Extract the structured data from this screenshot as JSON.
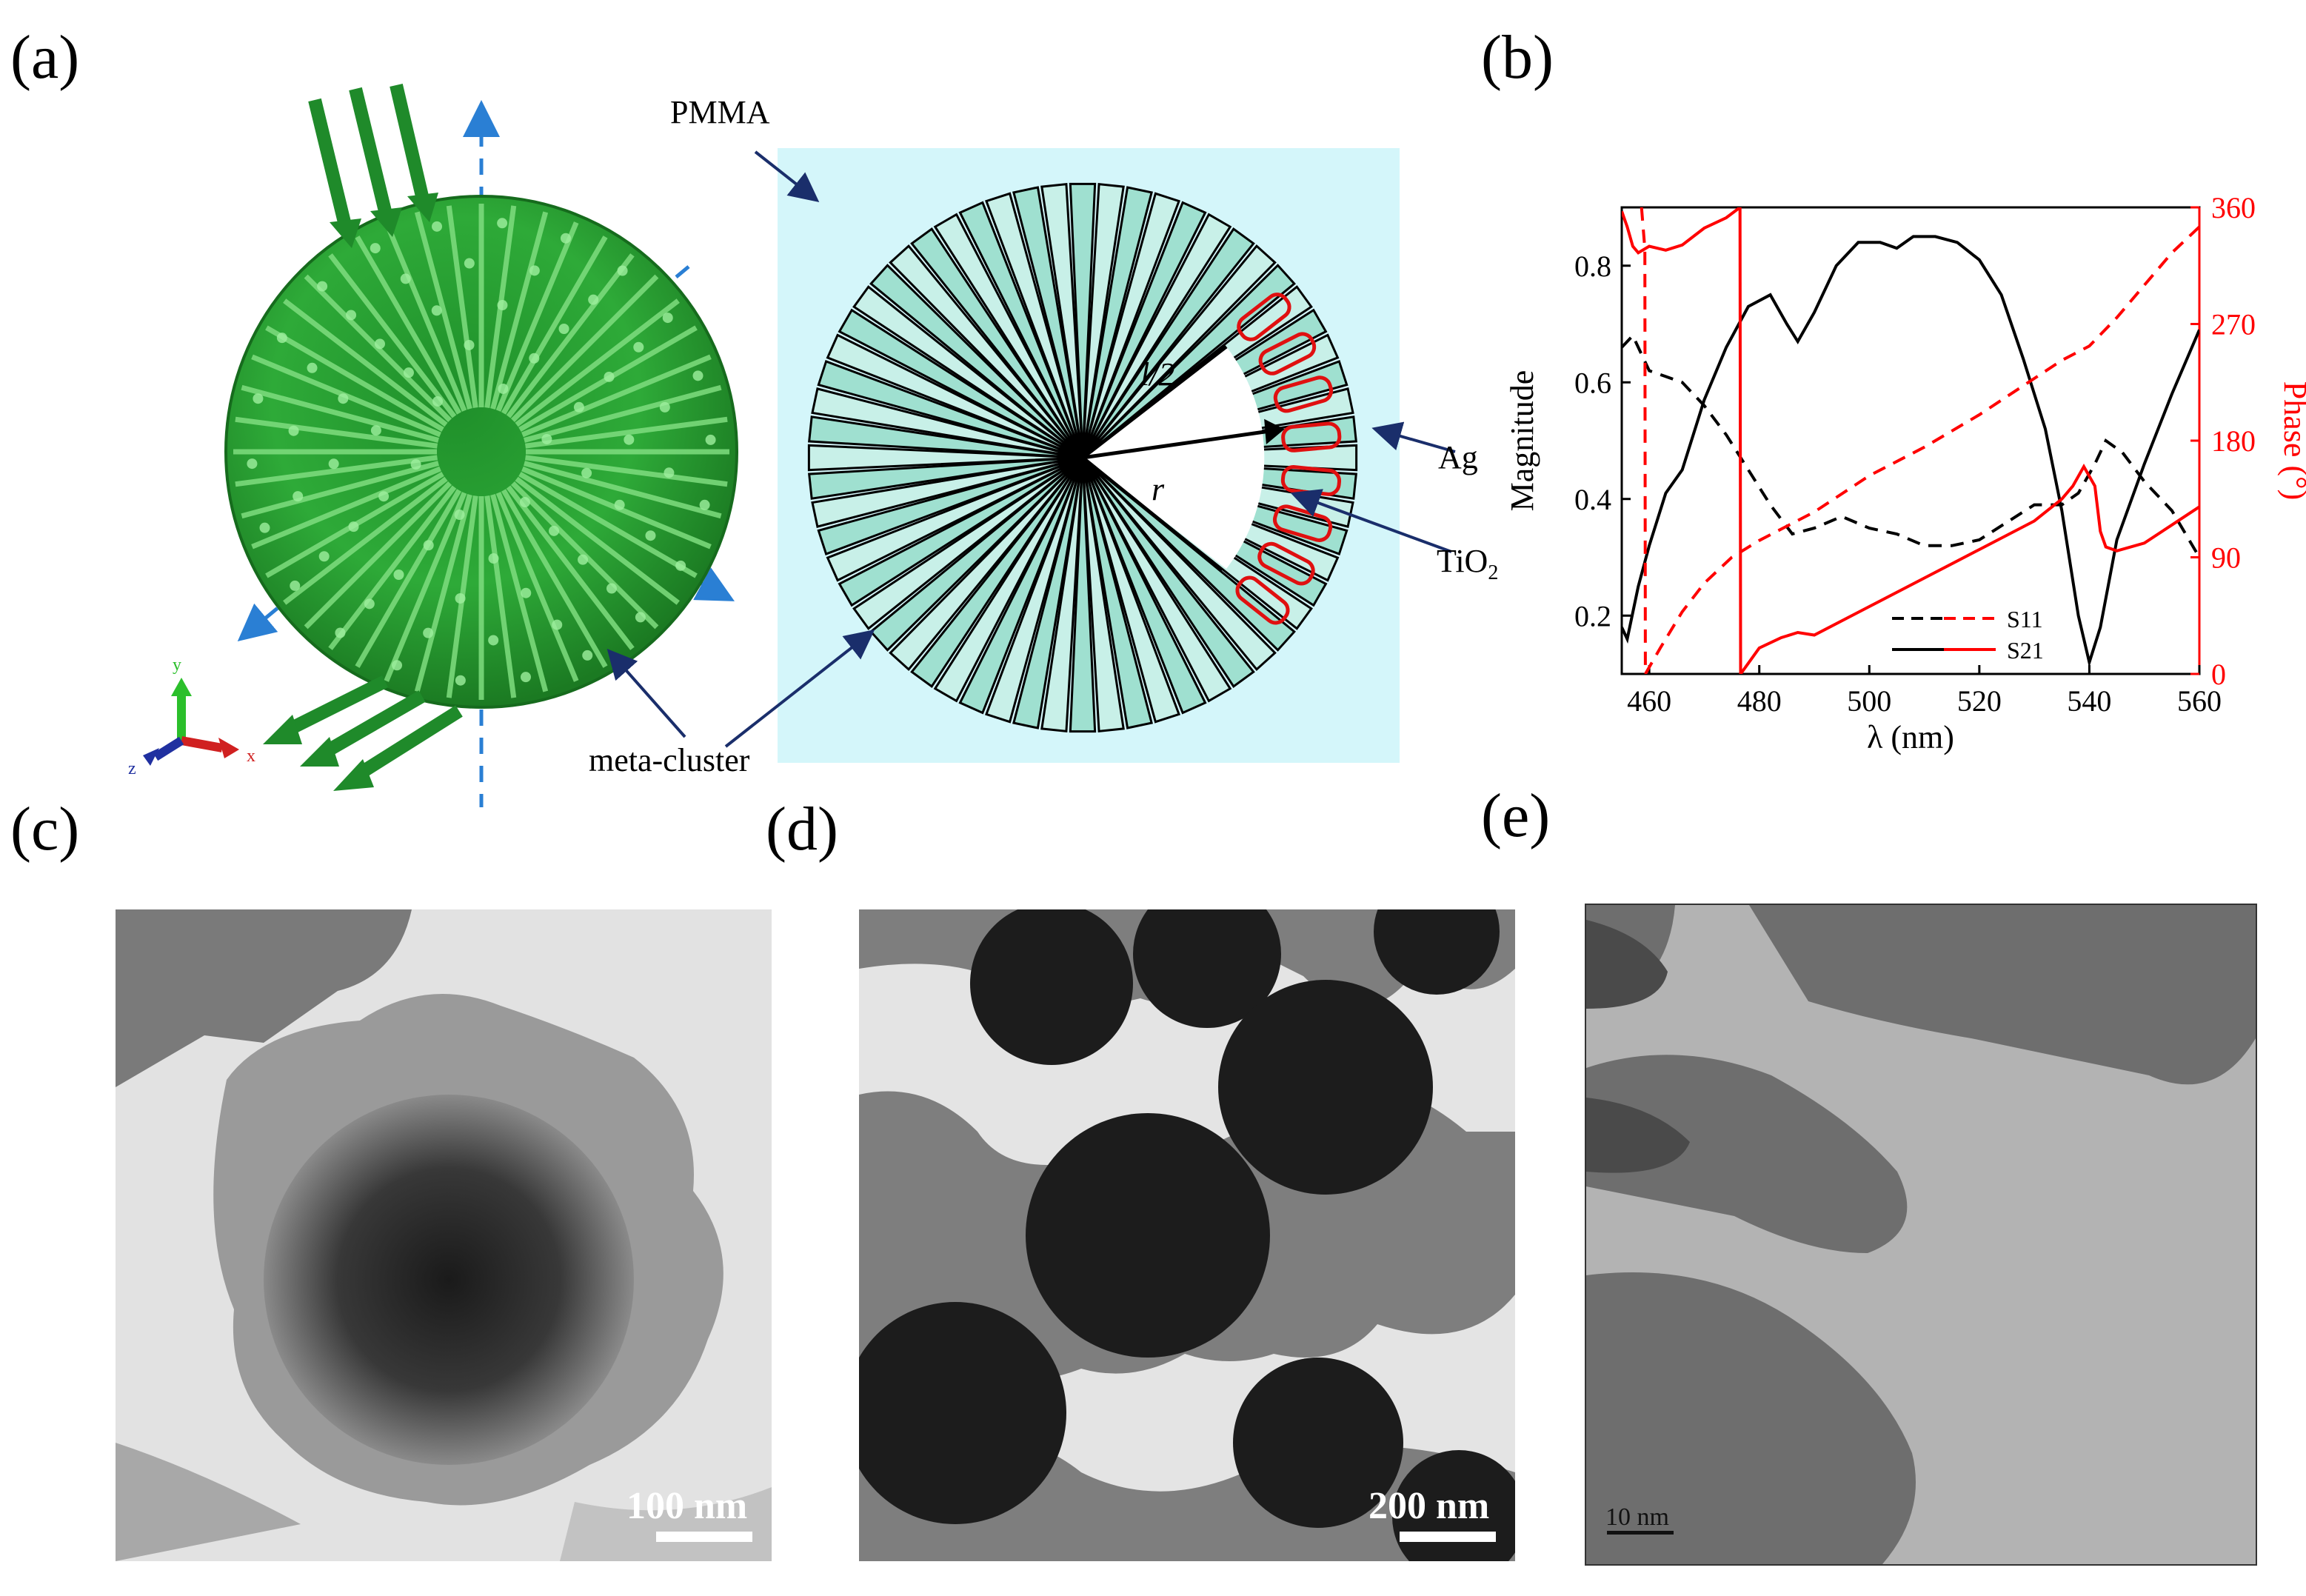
{
  "panels": {
    "a": "(a)",
    "b": "(b)",
    "c": "(c)",
    "d": "(d)",
    "e": "(e)"
  },
  "schematic": {
    "pmma": "PMMA",
    "ag": "Ag",
    "tio2_main": "TiO",
    "tio2_sub": "2",
    "half_length": "l/2",
    "radius": "r",
    "meta_cluster": "meta-cluster",
    "axes": {
      "y": "y",
      "z": "z",
      "x": "x"
    }
  },
  "chart_data": {
    "type": "line",
    "xlabel": "λ (nm)",
    "ylabel_left": "Magnitude",
    "ylabel_right": "Phase (°)",
    "xlim": [
      455,
      560
    ],
    "ylim_left": [
      0.1,
      0.9
    ],
    "ylim_right": [
      0,
      360
    ],
    "x_ticks": [
      "460",
      "480",
      "500",
      "520",
      "540",
      "560"
    ],
    "y_left_ticks": [
      "0.2",
      "0.4",
      "0.6",
      "0.8"
    ],
    "y_right_ticks": [
      "0",
      "90",
      "180",
      "270",
      "360"
    ],
    "legend": [
      "S11",
      "S21"
    ],
    "legend_position": "bottom-center",
    "series": [
      {
        "name": "S11",
        "quantity": "magnitude",
        "color": "#000000",
        "dash": true,
        "x": [
          455,
          457,
          460,
          463,
          466,
          470,
          474,
          478,
          482,
          486,
          490,
          495,
          500,
          505,
          510,
          515,
          520,
          525,
          530,
          535,
          538,
          541,
          543,
          546,
          550,
          555,
          560
        ],
        "y": [
          0.66,
          0.68,
          0.62,
          0.61,
          0.6,
          0.56,
          0.51,
          0.45,
          0.39,
          0.34,
          0.35,
          0.37,
          0.35,
          0.34,
          0.32,
          0.32,
          0.33,
          0.36,
          0.39,
          0.39,
          0.41,
          0.46,
          0.5,
          0.48,
          0.43,
          0.38,
          0.3
        ]
      },
      {
        "name": "S21",
        "quantity": "magnitude",
        "color": "#000000",
        "dash": false,
        "x": [
          455,
          456,
          458,
          460,
          463,
          466,
          470,
          474,
          478,
          482,
          485,
          487,
          490,
          494,
          498,
          502,
          505,
          508,
          512,
          516,
          520,
          524,
          528,
          532,
          535,
          538,
          540,
          542,
          545,
          550,
          555,
          560
        ],
        "y": [
          0.18,
          0.16,
          0.25,
          0.32,
          0.41,
          0.45,
          0.57,
          0.66,
          0.73,
          0.75,
          0.7,
          0.67,
          0.72,
          0.8,
          0.84,
          0.84,
          0.83,
          0.85,
          0.85,
          0.84,
          0.81,
          0.75,
          0.64,
          0.52,
          0.38,
          0.2,
          0.12,
          0.18,
          0.33,
          0.46,
          0.58,
          0.69
        ]
      },
      {
        "name": "S11",
        "quantity": "phase",
        "color": "#ff0000",
        "dash": true,
        "x": [
          458.6,
          459.2,
          459.3,
          462,
          466,
          470,
          475,
          480,
          485,
          490,
          500,
          510,
          520,
          530,
          535,
          540,
          545,
          550,
          555,
          560
        ],
        "y": [
          360,
          328,
          0,
          20,
          48,
          70,
          90,
          103,
          114,
          125,
          153,
          175,
          200,
          228,
          242,
          253,
          275,
          300,
          325,
          345
        ]
      },
      {
        "name": "S21",
        "quantity": "phase",
        "color": "#ff0000",
        "dash": false,
        "x": [
          455,
          456,
          457,
          458,
          460,
          463,
          466,
          470,
          474,
          476.5,
          476.6,
          480,
          484,
          487,
          490,
          500,
          510,
          520,
          530,
          535,
          537,
          539,
          541,
          542,
          543,
          545,
          550,
          555,
          560
        ],
        "y": [
          357,
          345,
          330,
          325,
          330,
          327,
          331,
          344,
          352,
          360,
          0,
          20,
          28,
          32,
          30,
          52,
          74,
          96,
          118,
          135,
          145,
          160,
          145,
          110,
          98,
          95,
          101,
          115,
          129
        ]
      }
    ]
  },
  "micrographs": {
    "c_scale": "100 nm",
    "d_scale": "200 nm",
    "e_scale": "10 nm"
  }
}
